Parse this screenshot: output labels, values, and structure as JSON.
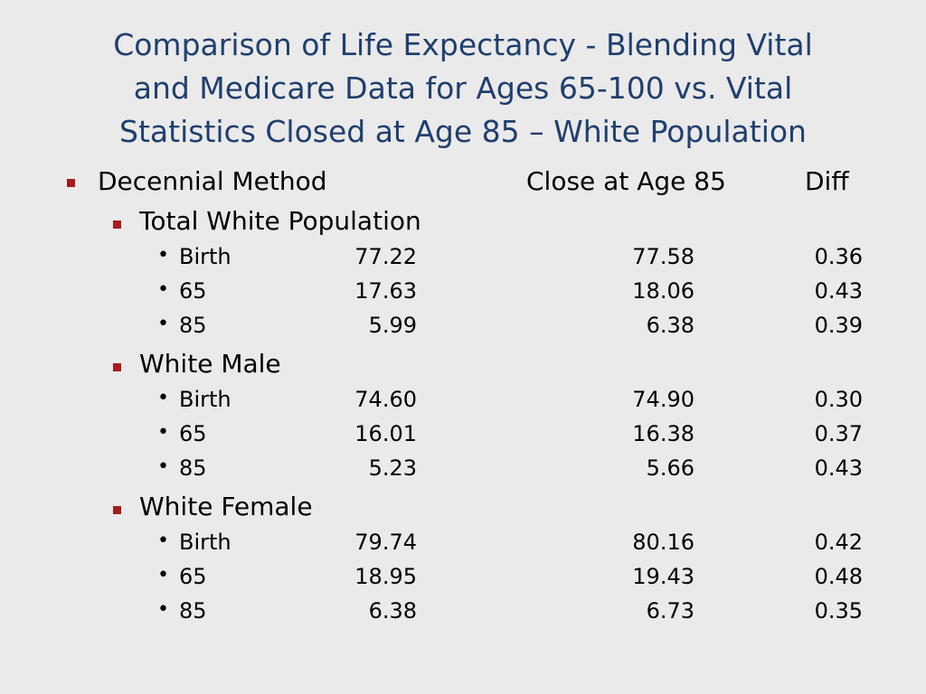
{
  "title_lines": [
    "Comparison of Life Expectancy - Blending Vital",
    "and Medicare Data for Ages 65-100 vs. Vital",
    "Statistics Closed at Age 85 – White Population"
  ],
  "header": {
    "method": "Decennial Method",
    "close": "Close at Age 85",
    "diff": "Diff"
  },
  "groups": [
    {
      "name": "Total White Population",
      "rows": [
        {
          "label": "Birth",
          "decennial": "77.22",
          "close": "77.58",
          "diff": "0.36"
        },
        {
          "label": "65",
          "decennial": "17.63",
          "close": "18.06",
          "diff": "0.43"
        },
        {
          "label": "85",
          "decennial": "5.99",
          "close": "6.38",
          "diff": "0.39"
        }
      ]
    },
    {
      "name": "White Male",
      "rows": [
        {
          "label": "Birth",
          "decennial": "74.60",
          "close": "74.90",
          "diff": "0.30"
        },
        {
          "label": "65",
          "decennial": "16.01",
          "close": "16.38",
          "diff": "0.37"
        },
        {
          "label": "85",
          "decennial": "5.23",
          "close": "5.66",
          "diff": "0.43"
        }
      ]
    },
    {
      "name": "White Female",
      "rows": [
        {
          "label": "Birth",
          "decennial": "79.74",
          "close": "80.16",
          "diff": "0.42"
        },
        {
          "label": "65",
          "decennial": "18.95",
          "close": "19.43",
          "diff": "0.48"
        },
        {
          "label": "85",
          "decennial": "6.38",
          "close": "6.73",
          "diff": "0.35"
        }
      ]
    }
  ]
}
